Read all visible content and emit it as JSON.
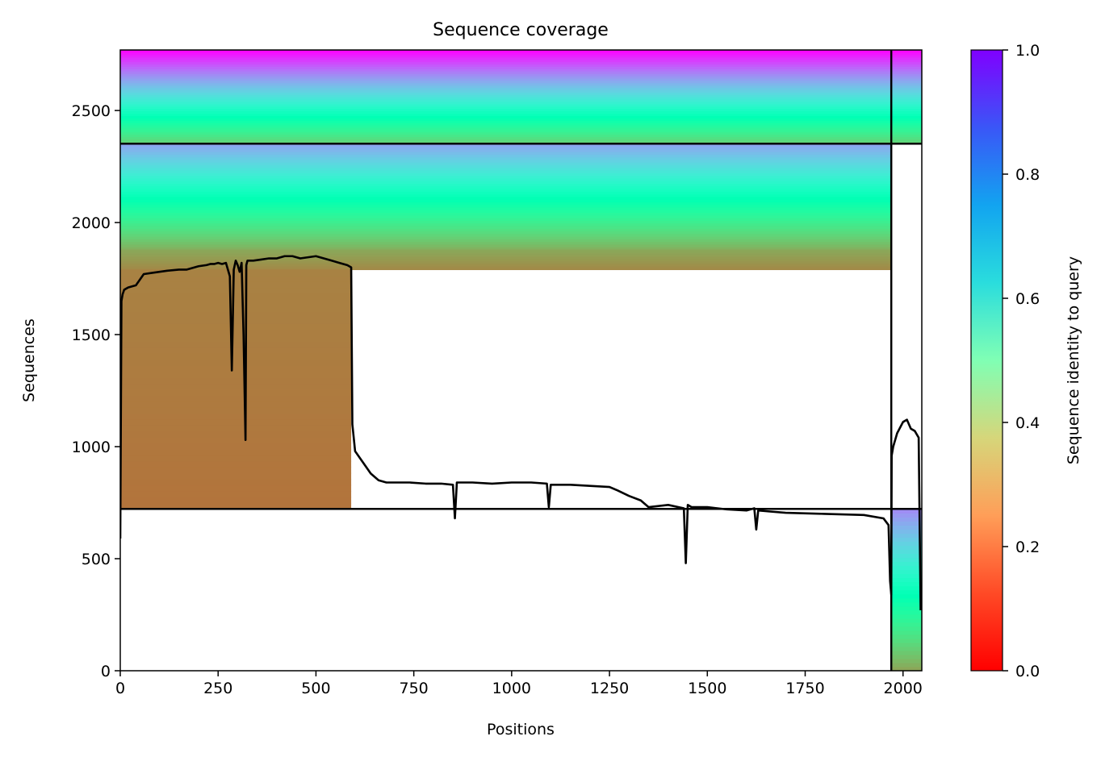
{
  "chart_data": {
    "type": "heatmap",
    "title": "Sequence coverage",
    "xlabel": "Positions",
    "ylabel": "Sequences",
    "colorbar_label": "Sequence identity to query",
    "colormap": "rainbow_r",
    "xlim": [
      0,
      2048
    ],
    "ylim": [
      0,
      2770
    ],
    "xticks": [
      0,
      250,
      500,
      750,
      1000,
      1250,
      1500,
      1750,
      2000
    ],
    "yticks": [
      0,
      500,
      1000,
      1500,
      2000,
      2500
    ],
    "colorbar_ticks": [
      "0.0",
      "0.2",
      "0.4",
      "0.6",
      "0.8",
      "1.0"
    ],
    "colorbar_range": [
      0,
      1
    ],
    "chain_boundaries": {
      "vertical_x": [
        1970
      ],
      "horizontal_y": [
        722,
        2352
      ]
    },
    "blocks": [
      {
        "name": "paired-all-chains",
        "x": [
          0,
          2048
        ],
        "y": [
          2352,
          2770
        ],
        "identity_bottom": 0.3,
        "identity_top": 1.0
      },
      {
        "name": "chain-1-unpaired-full",
        "x": [
          0,
          1970
        ],
        "y": [
          1880,
          2352
        ],
        "identity_bottom": 0.24,
        "identity_top": 0.78
      },
      {
        "name": "chain-1-unpaired-partial",
        "x": [
          0,
          1970
        ],
        "y": [
          1790,
          1880
        ],
        "identity_bottom": 0.18,
        "identity_top": 0.23
      },
      {
        "name": "chain-1-unpaired-nterm",
        "x": [
          0,
          590
        ],
        "y": [
          722,
          1790
        ],
        "identity_bottom": 0.15,
        "identity_top": 0.17
      },
      {
        "name": "chain-2-unpaired",
        "x": [
          1970,
          2048
        ],
        "y": [
          0,
          722
        ],
        "identity_bottom": 0.22,
        "identity_top": 0.82
      }
    ],
    "coverage_line": {
      "x": [
        0,
        3,
        6,
        10,
        20,
        40,
        60,
        80,
        100,
        120,
        150,
        170,
        190,
        200,
        220,
        230,
        240,
        250,
        260,
        270,
        280,
        285,
        290,
        295,
        300,
        305,
        310,
        315,
        320,
        322,
        325,
        330,
        340,
        360,
        380,
        400,
        420,
        440,
        460,
        480,
        500,
        520,
        540,
        560,
        580,
        590,
        593,
        600,
        620,
        640,
        660,
        680,
        700,
        740,
        780,
        820,
        850,
        855,
        860,
        900,
        950,
        1000,
        1050,
        1090,
        1095,
        1100,
        1150,
        1200,
        1250,
        1270,
        1300,
        1330,
        1350,
        1400,
        1440,
        1445,
        1450,
        1460,
        1500,
        1550,
        1600,
        1620,
        1625,
        1630,
        1700,
        1800,
        1900,
        1950,
        1963,
        1967,
        1970,
        1971,
        1975,
        1985,
        2000,
        2010,
        2020,
        2030,
        2040,
        2045
      ],
      "y": [
        590,
        1650,
        1680,
        1700,
        1710,
        1720,
        1770,
        1775,
        1780,
        1785,
        1790,
        1790,
        1800,
        1805,
        1810,
        1815,
        1815,
        1820,
        1815,
        1820,
        1760,
        1340,
        1790,
        1830,
        1810,
        1780,
        1820,
        1500,
        1030,
        1810,
        1830,
        1830,
        1830,
        1835,
        1840,
        1840,
        1850,
        1850,
        1840,
        1845,
        1850,
        1840,
        1830,
        1820,
        1810,
        1800,
        1100,
        980,
        930,
        880,
        850,
        840,
        840,
        840,
        835,
        835,
        830,
        680,
        840,
        840,
        835,
        840,
        840,
        835,
        730,
        830,
        830,
        825,
        820,
        805,
        780,
        760,
        730,
        740,
        725,
        480,
        740,
        730,
        730,
        720,
        715,
        725,
        630,
        715,
        705,
        700,
        695,
        680,
        650,
        400,
        340,
        960,
        1000,
        1060,
        1110,
        1120,
        1080,
        1070,
        1040,
        270
      ]
    }
  }
}
